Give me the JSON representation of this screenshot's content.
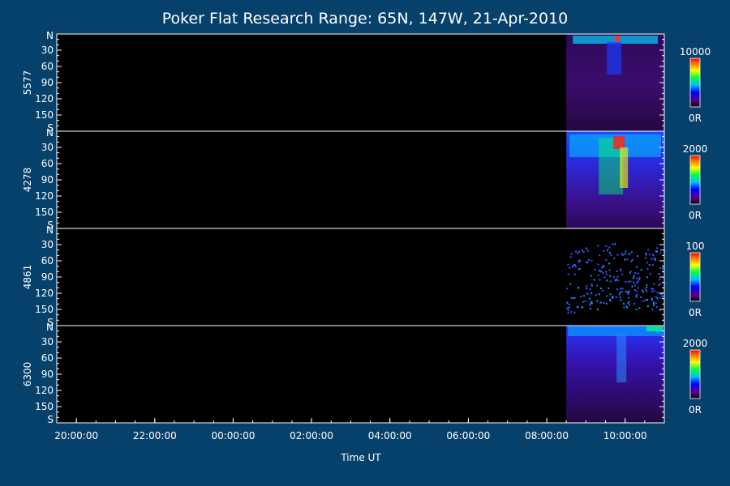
{
  "chart_data": {
    "type": "heatmap",
    "title": "Poker Flat Research Range: 65N, 147W, 21-Apr-2010",
    "xlabel": "Time UT",
    "x_ticks": [
      "20:00:00",
      "22:00:00",
      "00:00:00",
      "02:00:00",
      "04:00:00",
      "06:00:00",
      "08:00:00",
      "10:00:00"
    ],
    "x_range_hours": [
      19.5,
      11.0
    ],
    "y_ticks": [
      "N",
      "30",
      "60",
      "90",
      "120",
      "150",
      "S"
    ],
    "y_range_deg": [
      0,
      180
    ],
    "data_start_hour": 8.5,
    "panels": [
      {
        "ylabel": "5577",
        "cbar_max": "10000",
        "cbar_min": "0R"
      },
      {
        "ylabel": "4278",
        "cbar_max": "2000",
        "cbar_min": "0R"
      },
      {
        "ylabel": "4861",
        "cbar_max": "100",
        "cbar_min": "0R"
      },
      {
        "ylabel": "6300",
        "cbar_max": "2000",
        "cbar_min": "0R"
      }
    ]
  }
}
